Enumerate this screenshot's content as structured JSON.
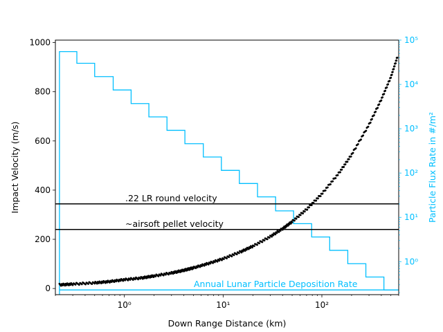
{
  "chart_data": {
    "type": "scatter",
    "xlabel": "Down Range Distance (km)",
    "ylabel": "Impact Velocity (m/s)",
    "y2label": "Particle Flux Rate in #/m²",
    "x_scale": "log",
    "xlim": [
      0.2,
      600
    ],
    "ylim": [
      -25,
      1010
    ],
    "y2_scale": "log",
    "y2lim": [
      0.18,
      100000
    ],
    "x_ticks": [
      {
        "value": 1,
        "label": "10⁰"
      },
      {
        "value": 10,
        "label": "10¹"
      },
      {
        "value": 100,
        "label": "10²"
      }
    ],
    "y_ticks": [
      {
        "value": 0,
        "label": "0"
      },
      {
        "value": 200,
        "label": "200"
      },
      {
        "value": 400,
        "label": "400"
      },
      {
        "value": 600,
        "label": "600"
      },
      {
        "value": 800,
        "label": "800"
      },
      {
        "value": 1000,
        "label": "1000"
      }
    ],
    "y2_ticks": [
      {
        "value": 1,
        "label": "10⁰"
      },
      {
        "value": 10,
        "label": "10¹"
      },
      {
        "value": 100,
        "label": "10²"
      },
      {
        "value": 1000,
        "label": "10³"
      },
      {
        "value": 10000,
        "label": "10⁴"
      },
      {
        "value": 100000,
        "label": "10⁵"
      }
    ],
    "velocity_curve": {
      "x": [
        0.22,
        0.3,
        0.5,
        0.7,
        1,
        1.5,
        2,
        3,
        4,
        5,
        7,
        10,
        15,
        20,
        30,
        40,
        50,
        70,
        100,
        150,
        200,
        300,
        400,
        500,
        580
      ],
      "y": [
        15,
        18,
        23,
        28,
        36,
        43,
        51,
        63,
        74,
        84,
        101,
        121,
        149,
        172,
        211,
        243,
        272,
        322,
        385,
        471,
        544,
        666,
        769,
        860,
        940
      ],
      "color": "#000000"
    },
    "flux_histogram": {
      "edges": [
        0.22,
        0.33,
        0.5,
        0.77,
        1.17,
        1.77,
        2.7,
        4.1,
        6.3,
        9.6,
        14.6,
        22.3,
        34,
        51.7,
        78.8,
        120,
        183,
        279,
        425,
        580
      ],
      "values": [
        55000,
        30000,
        15000,
        7500,
        3700,
        1850,
        920,
        460,
        230,
        115,
        58,
        29,
        14,
        7.2,
        3.6,
        1.8,
        0.9,
        0.45,
        0.23
      ],
      "color": "#00bfff"
    },
    "reference_lines": [
      {
        "y": 344,
        "label": ".22 LR round velocity",
        "color": "#000000"
      },
      {
        "y": 240,
        "label": "~airsoft pellet velocity",
        "color": "#000000"
      }
    ],
    "baseline": {
      "y2": 0.23,
      "label": "Annual Lunar Particle Deposition Rate",
      "color": "#00bfff"
    }
  }
}
